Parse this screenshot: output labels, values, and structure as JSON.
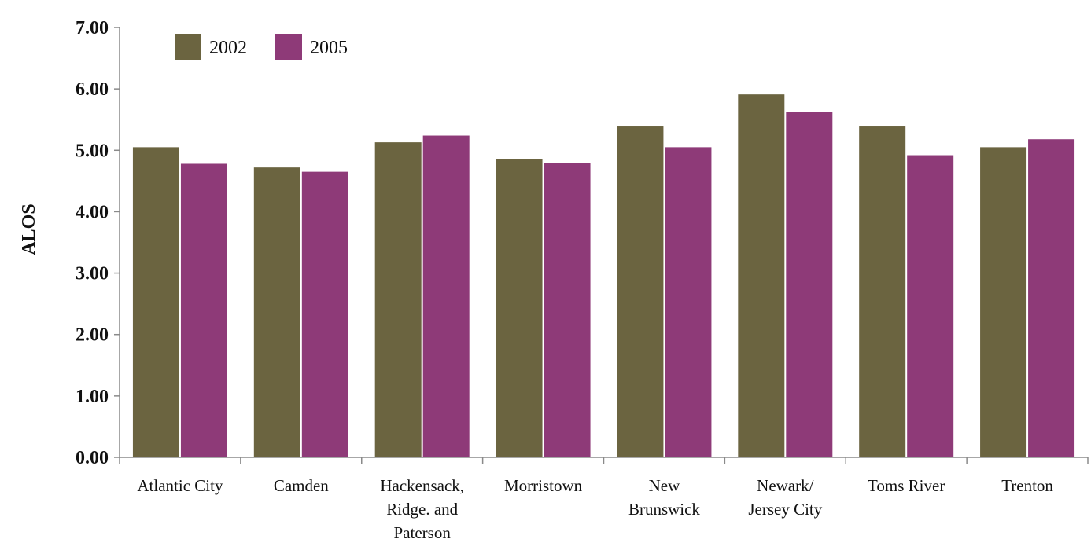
{
  "chart_data": {
    "type": "bar",
    "ylabel": "ALOS",
    "ylim": [
      0,
      7
    ],
    "yticks": [
      "0.00",
      "1.00",
      "2.00",
      "3.00",
      "4.00",
      "5.00",
      "6.00",
      "7.00"
    ],
    "categories": [
      [
        "Atlantic City"
      ],
      [
        "Camden"
      ],
      [
        "Hackensack,",
        "Ridge. and",
        "Paterson"
      ],
      [
        "Morristown"
      ],
      [
        "New",
        "Brunswick"
      ],
      [
        "Newark/",
        "Jersey City"
      ],
      [
        "Toms River"
      ],
      [
        "Trenton"
      ]
    ],
    "series": [
      {
        "name": "2002",
        "color": "#6b6440",
        "values": [
          5.05,
          4.72,
          5.13,
          4.86,
          5.4,
          5.91,
          5.4,
          5.05
        ]
      },
      {
        "name": "2005",
        "color": "#8e3a78",
        "values": [
          4.78,
          4.65,
          5.24,
          4.79,
          5.05,
          5.63,
          4.92,
          5.18
        ]
      }
    ],
    "legend_position": "top-left",
    "grid": false
  }
}
